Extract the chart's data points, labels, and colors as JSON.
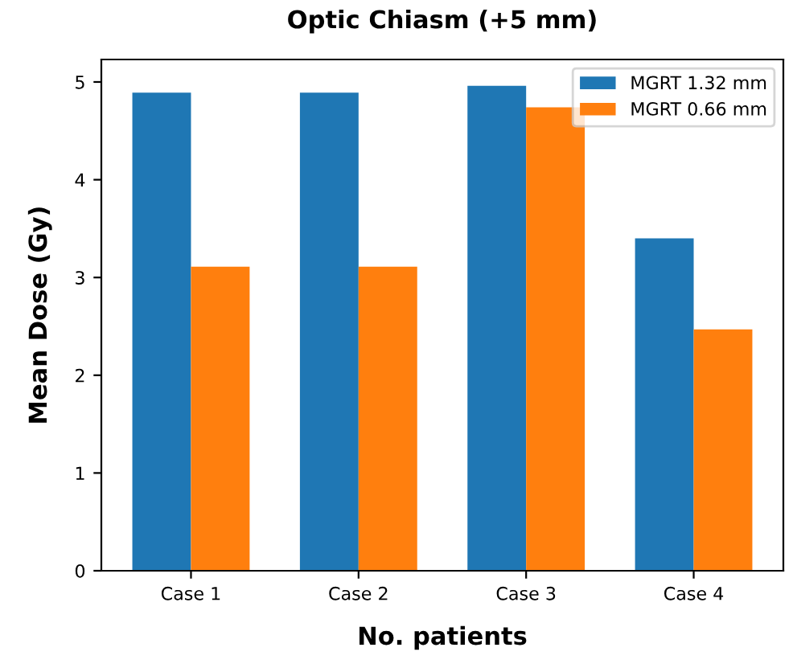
{
  "chart_data": {
    "type": "bar",
    "title": "Optic Chiasm (+5 mm)",
    "xlabel": "No. patients",
    "ylabel": "Mean Dose (Gy)",
    "categories": [
      "Case 1",
      "Case 2",
      "Case 3",
      "Case 4"
    ],
    "series": [
      {
        "name": "MGRT 1.32 mm",
        "color": "#1f77b4",
        "values": [
          4.89,
          4.89,
          4.96,
          3.4
        ]
      },
      {
        "name": "MGRT 0.66 mm",
        "color": "#ff7f0e",
        "values": [
          3.11,
          3.11,
          4.74,
          2.47
        ]
      }
    ],
    "ylim": [
      0,
      5.23
    ],
    "yticks": [
      0,
      1,
      2,
      3,
      4,
      5
    ],
    "legend": "top right",
    "grid": false
  }
}
